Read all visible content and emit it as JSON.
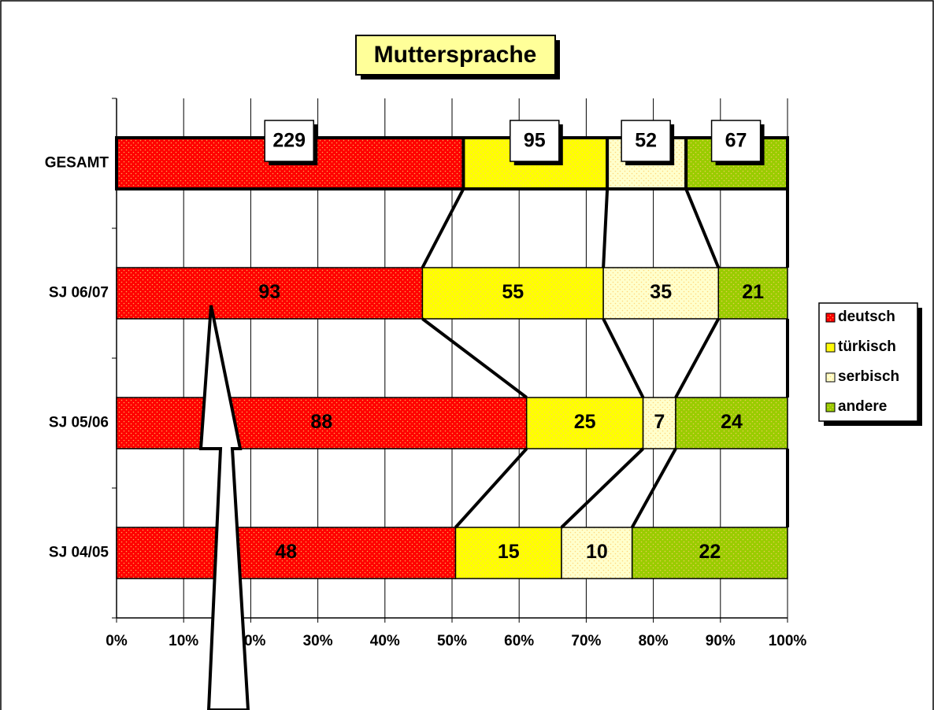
{
  "chart_data": {
    "type": "bar",
    "stacking": "percent",
    "orientation": "horizontal",
    "title": "Muttersprache",
    "categories": [
      "GESAMT",
      "SJ 06/07",
      "SJ 05/06",
      "SJ 04/05"
    ],
    "series": [
      {
        "name": "deutsch",
        "color": "#ff0000",
        "values": [
          229,
          93,
          88,
          48
        ]
      },
      {
        "name": "türkisch",
        "color": "#ffff00",
        "values": [
          95,
          55,
          25,
          15
        ]
      },
      {
        "name": "serbisch",
        "color": "#ffffcc",
        "values": [
          52,
          35,
          7,
          10
        ]
      },
      {
        "name": "andere",
        "color": "#99cc00",
        "values": [
          67,
          21,
          24,
          22
        ]
      }
    ],
    "xlim": [
      0,
      100
    ],
    "xticks": [
      {
        "value": 0,
        "label": "0%"
      },
      {
        "value": 10,
        "label": "10%"
      },
      {
        "value": 20,
        "label": "20%"
      },
      {
        "value": 30,
        "label": "30%"
      },
      {
        "value": 40,
        "label": "40%"
      },
      {
        "value": 50,
        "label": "50%"
      },
      {
        "value": 60,
        "label": "60%"
      },
      {
        "value": 70,
        "label": "70%"
      },
      {
        "value": 80,
        "label": "80%"
      },
      {
        "value": 90,
        "label": "90%"
      },
      {
        "value": 100,
        "label": "100%"
      }
    ],
    "grid": true,
    "legend": "right"
  }
}
